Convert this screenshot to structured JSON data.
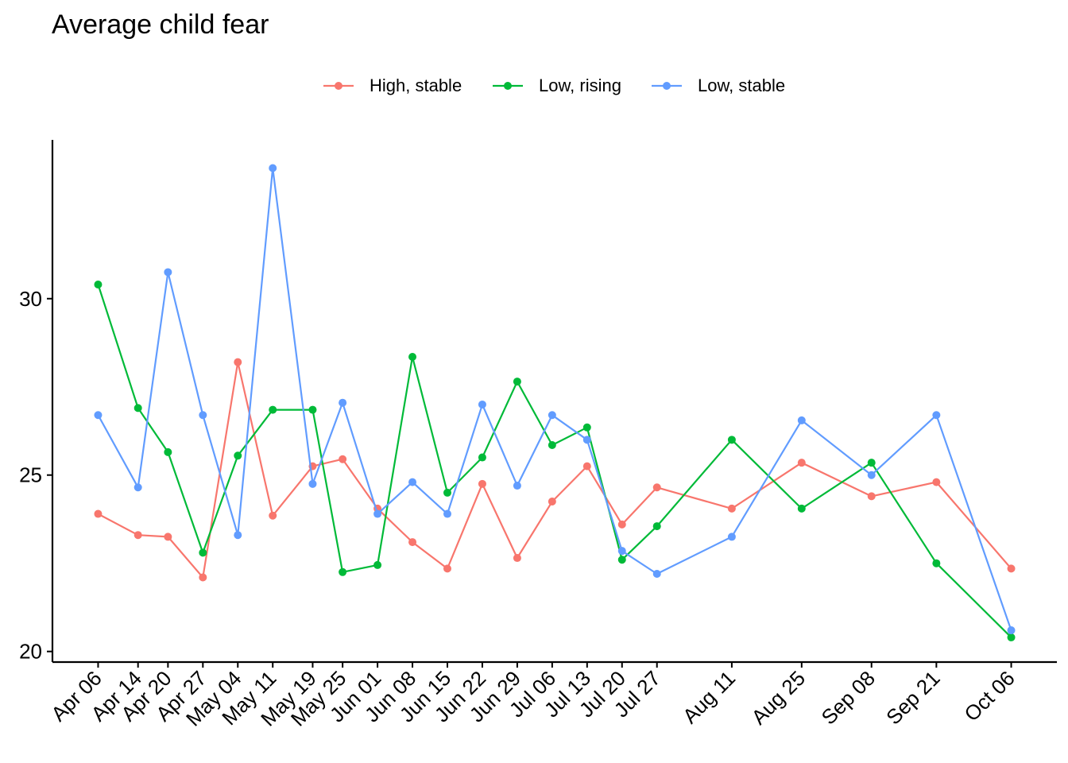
{
  "chart_data": {
    "type": "line",
    "title": "Average child fear",
    "xlabel": "",
    "ylabel": "",
    "x": [
      "2020-04-06",
      "2020-04-14",
      "2020-04-20",
      "2020-04-27",
      "2020-05-04",
      "2020-05-11",
      "2020-05-19",
      "2020-05-25",
      "2020-06-01",
      "2020-06-08",
      "2020-06-15",
      "2020-06-22",
      "2020-06-29",
      "2020-07-06",
      "2020-07-13",
      "2020-07-20",
      "2020-07-27",
      "2020-08-11",
      "2020-08-25",
      "2020-09-08",
      "2020-09-21",
      "2020-10-06"
    ],
    "x_tick_labels": [
      "Apr 06",
      "Apr 14",
      "Apr 20",
      "Apr 27",
      "May 04",
      "May 11",
      "May 19",
      "May 25",
      "Jun 01",
      "Jun 08",
      "Jun 15",
      "Jun 22",
      "Jun 29",
      "Jul 06",
      "Jul 13",
      "Jul 20",
      "Jul 27",
      "Aug 11",
      "Aug 25",
      "Sep 08",
      "Sep 21",
      "Oct 06"
    ],
    "y_ticks": [
      20,
      25,
      30
    ],
    "ylim": [
      19.7,
      34.5
    ],
    "grid": false,
    "legend_position": "top",
    "series": [
      {
        "name": "High, stable",
        "color": "#F8766D",
        "values": [
          23.9,
          23.3,
          23.25,
          22.1,
          28.2,
          23.85,
          25.25,
          25.45,
          24.05,
          23.1,
          22.35,
          24.75,
          22.65,
          24.25,
          25.25,
          23.6,
          24.65,
          24.05,
          25.35,
          24.4,
          24.8,
          22.35
        ]
      },
      {
        "name": "Low, rising",
        "color": "#00BA38",
        "values": [
          30.4,
          26.9,
          25.65,
          22.8,
          25.55,
          26.85,
          26.85,
          22.25,
          22.45,
          28.35,
          24.5,
          25.5,
          27.65,
          25.85,
          26.35,
          22.6,
          23.55,
          26.0,
          24.05,
          25.35,
          22.5,
          20.4
        ]
      },
      {
        "name": "Low, stable",
        "color": "#619CFF",
        "values": [
          26.7,
          24.65,
          30.75,
          26.7,
          23.3,
          33.7,
          24.75,
          27.05,
          23.9,
          24.8,
          23.9,
          27.0,
          24.7,
          26.7,
          26.0,
          22.85,
          22.2,
          23.25,
          26.55,
          25.0,
          26.7,
          20.6
        ]
      }
    ]
  }
}
